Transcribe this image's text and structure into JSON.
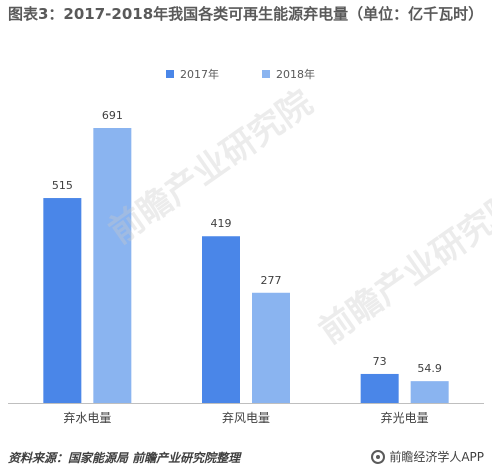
{
  "title": "图表3：2017-2018年我国各类可再生能源弃电量（单位：亿千瓦时）",
  "legend": [
    {
      "label": "2017年",
      "color": "#4a86e8"
    },
    {
      "label": "2018年",
      "color": "#8ab4f0"
    }
  ],
  "source": "资料来源：国家能源局 前瞻产业研究院整理",
  "brand": "前瞻经济学人APP",
  "watermark": "前瞻产业研究院",
  "chart_data": {
    "type": "bar",
    "title": "图表3：2017-2018年我国各类可再生能源弃电量（单位：亿千瓦时）",
    "categories": [
      "弃水电量",
      "弃风电量",
      "弃光电量"
    ],
    "series": [
      {
        "name": "2017年",
        "values": [
          515,
          419,
          73
        ],
        "color": "#4a86e8"
      },
      {
        "name": "2018年",
        "values": [
          691,
          277,
          54.9
        ],
        "color": "#8ab4f0"
      }
    ],
    "data_labels": [
      [
        "515",
        "419",
        "73"
      ],
      [
        "691",
        "277",
        "54.9"
      ]
    ],
    "xlabel": "",
    "ylabel": "",
    "ylim": [
      0,
      700
    ],
    "grid": false,
    "legend_position": "top"
  }
}
